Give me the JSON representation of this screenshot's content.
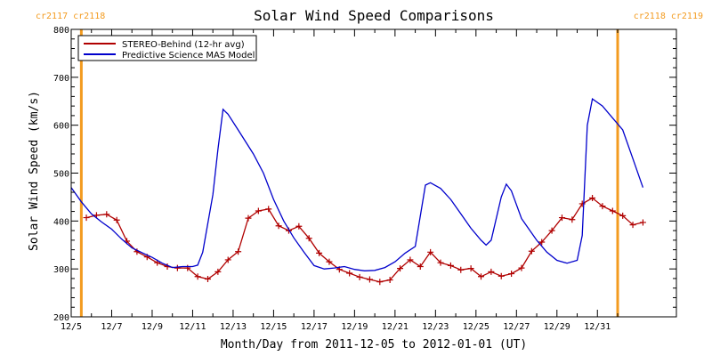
{
  "chart_data": {
    "type": "line",
    "title": "Solar Wind Speed Comparisons",
    "xlabel": "Month/Day from 2011-12-05 to 2012-01-01 (UT)",
    "ylabel": "Solar Wind Speed (km/s)",
    "xlim": [
      "2011-12-05",
      "2012-01-01"
    ],
    "ylim": [
      200,
      800
    ],
    "y_ticks": [
      200,
      300,
      400,
      500,
      600,
      700,
      800
    ],
    "x_ticks": [
      {
        "date": "2011-12-05",
        "label": "12/5"
      },
      {
        "date": "2011-12-07",
        "label": "12/7"
      },
      {
        "date": "2011-12-09",
        "label": "12/9"
      },
      {
        "date": "2011-12-11",
        "label": "12/11"
      },
      {
        "date": "2011-12-13",
        "label": "12/13"
      },
      {
        "date": "2011-12-15",
        "label": "12/15"
      },
      {
        "date": "2011-12-17",
        "label": "12/17"
      },
      {
        "date": "2011-12-19",
        "label": "12/19"
      },
      {
        "date": "2011-12-21",
        "label": "12/21"
      },
      {
        "date": "2011-12-23",
        "label": "12/23"
      },
      {
        "date": "2011-12-25",
        "label": "12/25"
      },
      {
        "date": "2011-12-27",
        "label": "12/27"
      },
      {
        "date": "2011-12-29",
        "label": "12/29"
      },
      {
        "date": "2011-12-31",
        "label": "12/31"
      }
    ],
    "grid": false,
    "legend_position": "top-left",
    "carrington_markers": [
      {
        "date": "2011-12-05 12:00",
        "label": "cr2117 cr2118",
        "side": "left"
      },
      {
        "date": "2012-01-01 00:00",
        "label": "cr2118 cr2119",
        "side": "right"
      }
    ],
    "marker_color": "#f39b1f",
    "series": [
      {
        "name": "STEREO-Behind (12-hr avg)",
        "color": "#b00000",
        "marker": "plus",
        "points": [
          [
            "2011-12-05 18:00",
            407
          ],
          [
            "2011-12-06 06:00",
            412
          ],
          [
            "2011-12-06 18:00",
            414
          ],
          [
            "2011-12-07 06:00",
            402
          ],
          [
            "2011-12-07 18:00",
            358
          ],
          [
            "2011-12-08 06:00",
            336
          ],
          [
            "2011-12-08 18:00",
            325
          ],
          [
            "2011-12-09 06:00",
            313
          ],
          [
            "2011-12-09 18:00",
            305
          ],
          [
            "2011-12-10 06:00",
            302
          ],
          [
            "2011-12-10 18:00",
            302
          ],
          [
            "2011-12-11 06:00",
            284
          ],
          [
            "2011-12-11 18:00",
            279
          ],
          [
            "2011-12-12 06:00",
            294
          ],
          [
            "2011-12-12 18:00",
            319
          ],
          [
            "2011-12-13 06:00",
            336
          ],
          [
            "2011-12-13 18:00",
            406
          ],
          [
            "2011-12-14 06:00",
            421
          ],
          [
            "2011-12-14 18:00",
            425
          ],
          [
            "2011-12-15 06:00",
            390
          ],
          [
            "2011-12-15 18:00",
            380
          ],
          [
            "2011-12-16 06:00",
            389
          ],
          [
            "2011-12-16 18:00",
            364
          ],
          [
            "2011-12-17 06:00",
            333
          ],
          [
            "2011-12-17 18:00",
            315
          ],
          [
            "2011-12-18 06:00",
            299
          ],
          [
            "2011-12-18 18:00",
            291
          ],
          [
            "2011-12-19 06:00",
            283
          ],
          [
            "2011-12-19 18:00",
            278
          ],
          [
            "2011-12-20 06:00",
            273
          ],
          [
            "2011-12-20 18:00",
            277
          ],
          [
            "2011-12-21 06:00",
            301
          ],
          [
            "2011-12-21 18:00",
            319
          ],
          [
            "2011-12-22 06:00",
            305
          ],
          [
            "2011-12-22 18:00",
            335
          ],
          [
            "2011-12-23 06:00",
            313
          ],
          [
            "2011-12-23 18:00",
            307
          ],
          [
            "2011-12-24 06:00",
            298
          ],
          [
            "2011-12-24 18:00",
            301
          ],
          [
            "2011-12-25 06:00",
            284
          ],
          [
            "2011-12-25 18:00",
            294
          ],
          [
            "2011-12-26 06:00",
            285
          ],
          [
            "2011-12-26 18:00",
            290
          ],
          [
            "2011-12-27 06:00",
            302
          ],
          [
            "2011-12-27 18:00",
            337
          ],
          [
            "2011-12-28 06:00",
            356
          ],
          [
            "2011-12-28 18:00",
            380
          ],
          [
            "2011-12-29 06:00",
            407
          ],
          [
            "2011-12-29 18:00",
            403
          ],
          [
            "2011-12-30 06:00",
            436
          ],
          [
            "2011-12-30 18:00",
            448
          ],
          [
            "2011-12-31 06:00",
            431
          ],
          [
            "2011-12-31 18:00",
            421
          ],
          [
            "2012-01-01 06:00",
            411
          ],
          [
            "2012-01-01 18:00",
            392
          ],
          [
            "2012-01-02 06:00",
            397
          ]
        ]
      },
      {
        "name": "Predictive Science MAS Model",
        "color": "#0000cc",
        "marker": "none",
        "points": [
          [
            "2011-12-05 00:00",
            470
          ],
          [
            "2011-12-05 12:00",
            440
          ],
          [
            "2011-12-06 00:00",
            415
          ],
          [
            "2011-12-06 12:00",
            398
          ],
          [
            "2011-12-07 00:00",
            383
          ],
          [
            "2011-12-07 12:00",
            362
          ],
          [
            "2011-12-08 00:00",
            344
          ],
          [
            "2011-12-08 12:00",
            334
          ],
          [
            "2011-12-09 00:00",
            324
          ],
          [
            "2011-12-09 12:00",
            312
          ],
          [
            "2011-12-10 00:00",
            303
          ],
          [
            "2011-12-10 12:00",
            305
          ],
          [
            "2011-12-11 00:00",
            305
          ],
          [
            "2011-12-11 06:00",
            308
          ],
          [
            "2011-12-11 12:00",
            335
          ],
          [
            "2011-12-12 00:00",
            455
          ],
          [
            "2011-12-12 06:00",
            550
          ],
          [
            "2011-12-12 12:00",
            633
          ],
          [
            "2011-12-12 18:00",
            623
          ],
          [
            "2011-12-13 06:00",
            590
          ],
          [
            "2011-12-14 00:00",
            540
          ],
          [
            "2011-12-14 12:00",
            500
          ],
          [
            "2011-12-15 00:00",
            445
          ],
          [
            "2011-12-15 12:00",
            400
          ],
          [
            "2011-12-16 00:00",
            365
          ],
          [
            "2011-12-16 12:00",
            335
          ],
          [
            "2011-12-17 00:00",
            307
          ],
          [
            "2011-12-17 12:00",
            300
          ],
          [
            "2011-12-18 00:00",
            302
          ],
          [
            "2011-12-18 12:00",
            305
          ],
          [
            "2011-12-19 00:00",
            299
          ],
          [
            "2011-12-19 12:00",
            296
          ],
          [
            "2011-12-20 00:00",
            297
          ],
          [
            "2011-12-20 12:00",
            303
          ],
          [
            "2011-12-21 00:00",
            315
          ],
          [
            "2011-12-21 12:00",
            333
          ],
          [
            "2011-12-22 00:00",
            347
          ],
          [
            "2011-12-22 12:00",
            475
          ],
          [
            "2011-12-22 18:00",
            480
          ],
          [
            "2011-12-23 06:00",
            468
          ],
          [
            "2011-12-23 18:00",
            445
          ],
          [
            "2011-12-24 06:00",
            415
          ],
          [
            "2011-12-24 18:00",
            385
          ],
          [
            "2011-12-25 06:00",
            360
          ],
          [
            "2011-12-25 12:00",
            350
          ],
          [
            "2011-12-25 18:00",
            360
          ],
          [
            "2011-12-26 06:00",
            450
          ],
          [
            "2011-12-26 12:00",
            477
          ],
          [
            "2011-12-26 18:00",
            463
          ],
          [
            "2011-12-27 06:00",
            405
          ],
          [
            "2011-12-28 00:00",
            360
          ],
          [
            "2011-12-28 12:00",
            335
          ],
          [
            "2011-12-29 00:00",
            318
          ],
          [
            "2011-12-29 12:00",
            312
          ],
          [
            "2011-12-30 00:00",
            318
          ],
          [
            "2011-12-30 06:00",
            370
          ],
          [
            "2011-12-30 12:00",
            600
          ],
          [
            "2011-12-30 18:00",
            655
          ],
          [
            "2011-12-31 06:00",
            640
          ],
          [
            "2011-12-31 18:00",
            615
          ],
          [
            "2012-01-01 06:00",
            590
          ],
          [
            "2012-01-01 18:00",
            530
          ],
          [
            "2012-01-02 06:00",
            470
          ]
        ]
      }
    ]
  }
}
